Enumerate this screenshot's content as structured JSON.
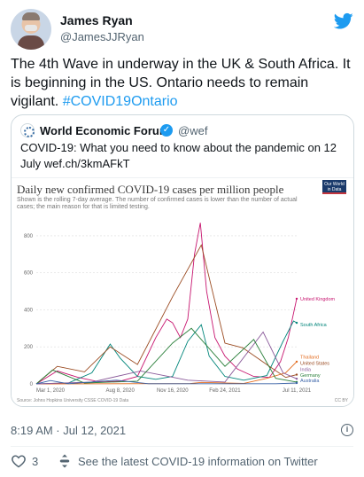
{
  "user": {
    "name": "James Ryan",
    "handle": "@JamesJJRyan"
  },
  "tweet": {
    "text": "The 4th Wave in underway in the UK & South Africa. It is beginning in the US. Ontario needs to remain vigilant. ",
    "hashtag": "#COVID19Ontario"
  },
  "quoted": {
    "name": "World Economic Forum",
    "handle": "@wef",
    "text": "COVID-19: What you need to know about the pandemic on 12 July wef.ch/3kmAFkT"
  },
  "chart_data": {
    "type": "line",
    "title": "Daily new confirmed COVID-19 cases per million people",
    "subtitle": "Shown is the rolling 7-day average. The number of confirmed cases is lower than the number of actual cases; the main reason for that is limited testing.",
    "badge": "Our World in Data",
    "source": "Source: Johns Hopkins University CSSE COVID-19 Data",
    "license": "CC BY",
    "x_ticks": [
      "Mar 1, 2020",
      "Aug 8, 2020",
      "Nov 16, 2020",
      "Feb 24, 2021",
      "Jul 11, 2021"
    ],
    "x_range": [
      "2020-03-01",
      "2021-07-11"
    ],
    "y_ticks": [
      0,
      200,
      400,
      600,
      800
    ],
    "ylim": [
      0,
      900
    ],
    "grid": true,
    "series": [
      {
        "name": "United Kingdom",
        "color": "#c7156f",
        "x": [
          "2020-03-01",
          "2020-04-10",
          "2020-05-20",
          "2020-07-01",
          "2020-08-08",
          "2020-09-10",
          "2020-10-15",
          "2020-11-05",
          "2020-11-16",
          "2020-12-01",
          "2020-12-15",
          "2020-12-28",
          "2021-01-08",
          "2021-01-20",
          "2021-02-05",
          "2021-02-24",
          "2021-03-20",
          "2021-04-20",
          "2021-05-20",
          "2021-06-10",
          "2021-06-25",
          "2021-07-11"
        ],
        "y": [
          0,
          70,
          35,
          10,
          15,
          40,
          250,
          350,
          330,
          250,
          350,
          700,
          870,
          500,
          250,
          150,
          80,
          40,
          35,
          120,
          250,
          460
        ]
      },
      {
        "name": "South Africa",
        "color": "#00857a",
        "x": [
          "2020-03-01",
          "2020-05-01",
          "2020-06-15",
          "2020-07-20",
          "2020-08-08",
          "2020-09-10",
          "2020-10-15",
          "2020-11-16",
          "2020-12-15",
          "2021-01-10",
          "2021-01-25",
          "2021-02-24",
          "2021-04-01",
          "2021-05-15",
          "2021-06-15",
          "2021-07-05",
          "2021-07-11"
        ],
        "y": [
          0,
          5,
          60,
          215,
          140,
          40,
          25,
          40,
          230,
          320,
          150,
          40,
          20,
          45,
          230,
          340,
          330
        ]
      },
      {
        "name": "Thailand",
        "color": "#e36c1f",
        "x": [
          "2020-03-01",
          "2020-12-20",
          "2021-01-10",
          "2021-04-01",
          "2021-05-15",
          "2021-06-20",
          "2021-07-11"
        ],
        "y": [
          0,
          2,
          8,
          3,
          30,
          60,
          120
        ]
      },
      {
        "name": "United States",
        "color": "#9a4a20",
        "x": [
          "2020-03-01",
          "2020-04-10",
          "2020-06-01",
          "2020-07-20",
          "2020-09-10",
          "2020-11-16",
          "2021-01-10",
          "2021-02-24",
          "2021-03-30",
          "2021-05-20",
          "2021-06-20",
          "2021-07-11"
        ],
        "y": [
          0,
          95,
          65,
          200,
          105,
          470,
          750,
          220,
          195,
          95,
          35,
          50
        ]
      },
      {
        "name": "India",
        "color": "#8a5a9a",
        "x": [
          "2020-03-01",
          "2020-06-15",
          "2020-09-16",
          "2020-12-15",
          "2021-02-24",
          "2021-05-08",
          "2021-06-15",
          "2021-07-11"
        ],
        "y": [
          0,
          10,
          70,
          20,
          10,
          280,
          60,
          28
        ]
      },
      {
        "name": "Germany",
        "color": "#2a7f3a",
        "x": [
          "2020-03-01",
          "2020-04-01",
          "2020-06-01",
          "2020-09-10",
          "2020-11-16",
          "2020-12-22",
          "2021-02-24",
          "2021-04-20",
          "2021-06-01",
          "2021-07-11"
        ],
        "y": [
          0,
          75,
          5,
          15,
          220,
          300,
          95,
          240,
          30,
          10
        ]
      },
      {
        "name": "Australia",
        "color": "#3a63a8",
        "x": [
          "2020-03-01",
          "2020-03-28",
          "2020-05-01",
          "2020-08-01",
          "2020-10-01",
          "2021-06-01",
          "2021-07-11"
        ],
        "y": [
          0,
          18,
          1,
          20,
          1,
          1,
          5
        ]
      }
    ]
  },
  "meta": {
    "timestamp": "8:19 AM · Jul 12, 2021"
  },
  "actions": {
    "like_count": "3",
    "conversation_link": "See the latest COVID-19 information on Twitter"
  },
  "colors": {
    "link": "#1d9bf0",
    "muted": "#536471"
  },
  "icons": {
    "brand": "twitter-bird-icon",
    "info": "info-icon",
    "like": "heart-icon",
    "conversation": "conversation-icon",
    "verified": "verified-badge-icon"
  }
}
